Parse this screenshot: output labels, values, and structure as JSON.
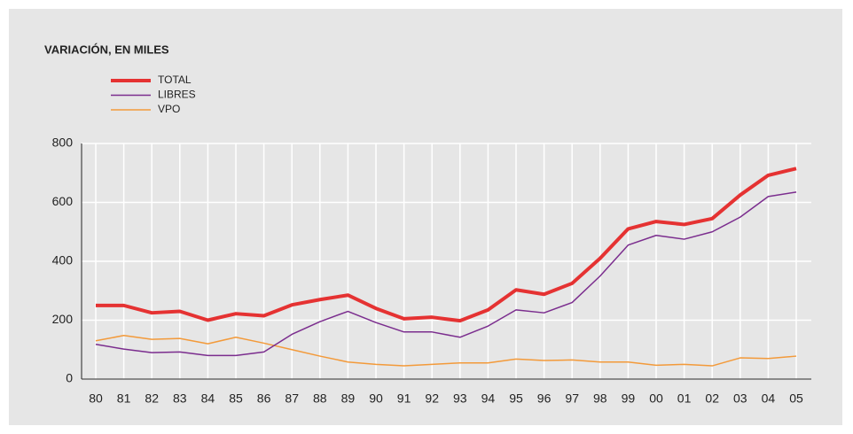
{
  "chart_data": {
    "type": "line",
    "title": "VARIACIÓN, EN MILES",
    "categories": [
      "80",
      "81",
      "82",
      "83",
      "84",
      "85",
      "86",
      "87",
      "88",
      "89",
      "90",
      "91",
      "92",
      "93",
      "94",
      "95",
      "96",
      "97",
      "98",
      "99",
      "00",
      "01",
      "02",
      "03",
      "04",
      "05"
    ],
    "series": [
      {
        "name": "TOTAL",
        "color": "#e53232",
        "values": [
          250,
          250,
          225,
          230,
          200,
          222,
          215,
          252,
          270,
          285,
          240,
          205,
          210,
          198,
          235,
          303,
          288,
          325,
          410,
          510,
          535,
          525,
          545,
          625,
          692,
          715
        ]
      },
      {
        "name": "LIBRES",
        "color": "#7b2d8e",
        "values": [
          118,
          102,
          90,
          92,
          80,
          80,
          92,
          152,
          195,
          230,
          192,
          160,
          160,
          142,
          180,
          235,
          225,
          260,
          350,
          455,
          488,
          475,
          500,
          550,
          620,
          635
        ]
      },
      {
        "name": "VPO",
        "color": "#f39a3a",
        "values": [
          130,
          148,
          135,
          138,
          120,
          142,
          122,
          100,
          78,
          58,
          50,
          45,
          50,
          55,
          55,
          68,
          63,
          65,
          58,
          58,
          47,
          50,
          45,
          72,
          70,
          78
        ]
      }
    ],
    "ylim": [
      0,
      800
    ],
    "yticks": [
      0,
      200,
      400,
      600,
      800
    ],
    "grid": true
  }
}
